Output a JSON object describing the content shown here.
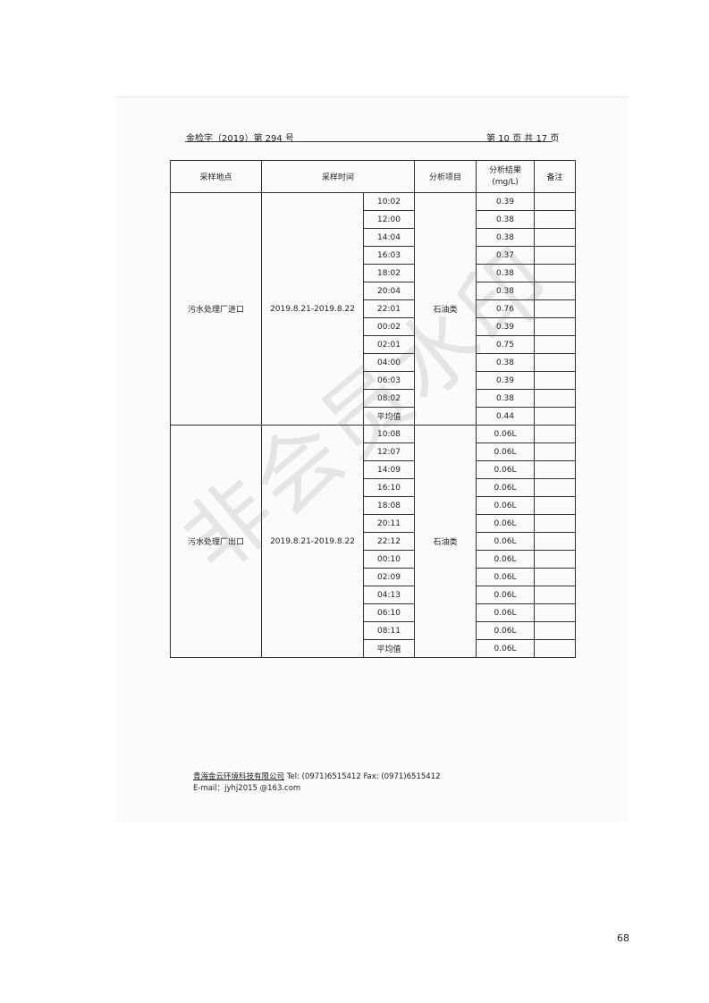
{
  "header": {
    "report_no": "金检字（2019）第 294 号",
    "page_info": "第 10 页 共 17 页"
  },
  "table": {
    "columns": [
      "采样地点",
      "采样时间",
      "分析项目",
      "分析结果\n(mg/L)",
      "备注"
    ],
    "groups": [
      {
        "location": "污水处理厂进口",
        "date": "2019.8.21-2019.8.22",
        "item": "石油类",
        "rows": [
          [
            "10:02",
            "0.39"
          ],
          [
            "12:00",
            "0.38"
          ],
          [
            "14:04",
            "0.38"
          ],
          [
            "16:03",
            "0.37"
          ],
          [
            "18:02",
            "0.38"
          ],
          [
            "20:04",
            "0.38"
          ],
          [
            "22:01",
            "0.76"
          ],
          [
            "00:02",
            "0.39"
          ],
          [
            "02:01",
            "0.75"
          ],
          [
            "04:00",
            "0.38"
          ],
          [
            "06:03",
            "0.39"
          ],
          [
            "08:02",
            "0.38"
          ],
          [
            "平均值",
            "0.44"
          ]
        ]
      },
      {
        "location": "污水处理厂出口",
        "date": "2019.8.21-2019.8.22",
        "item": "石油类",
        "rows": [
          [
            "10:08",
            "0.06L"
          ],
          [
            "12:07",
            "0.06L"
          ],
          [
            "14:09",
            "0.06L"
          ],
          [
            "16:10",
            "0.06L"
          ],
          [
            "18:08",
            "0.06L"
          ],
          [
            "20:11",
            "0.06L"
          ],
          [
            "22:12",
            "0.06L"
          ],
          [
            "00:10",
            "0.06L"
          ],
          [
            "02:09",
            "0.06L"
          ],
          [
            "04:13",
            "0.06L"
          ],
          [
            "06:10",
            "0.06L"
          ],
          [
            "08:11",
            "0.06L"
          ],
          [
            "平均值",
            "0.06L"
          ]
        ]
      }
    ]
  },
  "watermark": "非会员水印",
  "footer": {
    "company": "青海金云环境科技有限公司",
    "contact": "Tel:   (0971)6515412    Fax:   (0971)6515412",
    "email": "E-mail：jyhj2015 @163.com"
  },
  "page_number": "68"
}
